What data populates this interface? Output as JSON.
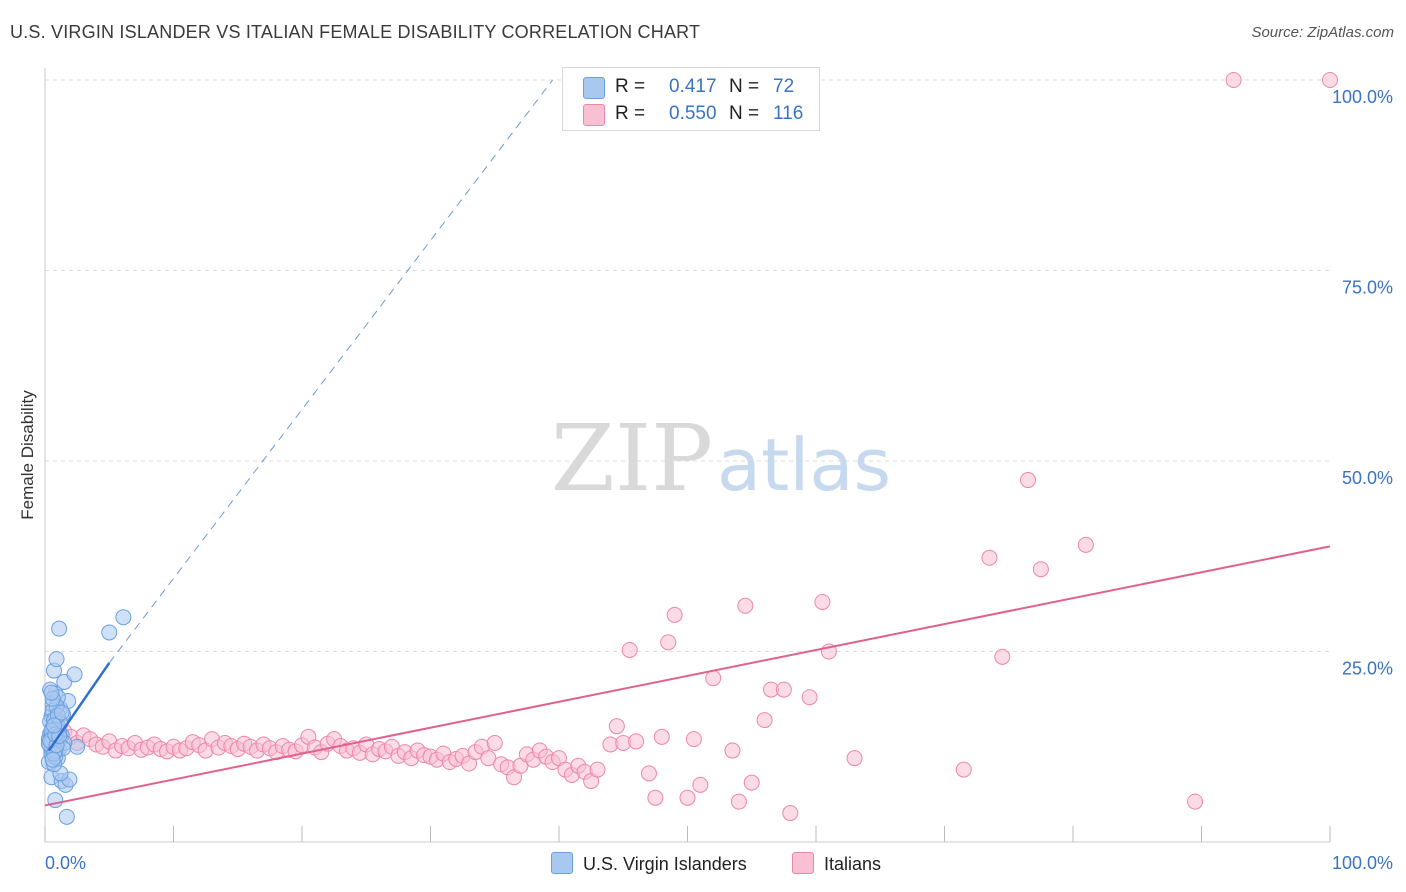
{
  "title": "U.S. VIRGIN ISLANDER VS ITALIAN FEMALE DISABILITY CORRELATION CHART",
  "source": "Source: ZipAtlas.com",
  "watermark": {
    "zip": "ZIP",
    "atlas": "atlas"
  },
  "legend": {
    "series1": {
      "r_label": "R =",
      "r_value": "0.417",
      "n_label": "N =",
      "n_value": "72"
    },
    "series2": {
      "r_label": "R =",
      "r_value": "0.550",
      "n_label": "N =",
      "n_value": "116"
    }
  },
  "bottom_legend": {
    "series1": "U.S. Virgin Islanders",
    "series2": "Italians"
  },
  "colors": {
    "blue_fill": "#a9c8f0",
    "blue_stroke": "#6a9fe0",
    "blue_line": "#2f6fcf",
    "pink_fill": "#f8c0d2",
    "pink_stroke": "#ee86a8",
    "pink_line": "#e0618e",
    "axis_text": "#3a73c4",
    "grid": "#dddddd"
  },
  "chart_data": {
    "type": "scatter",
    "title": "U.S. VIRGIN ISLANDER VS ITALIAN FEMALE DISABILITY CORRELATION CHART",
    "xlabel": "",
    "ylabel": "Female Disability",
    "xlim": [
      0,
      100
    ],
    "ylim": [
      0,
      100
    ],
    "x_tick_labels": [
      "0.0%",
      "100.0%"
    ],
    "y_tick_labels": [
      "25.0%",
      "50.0%",
      "75.0%",
      "100.0%"
    ],
    "y_ticks": [
      25,
      50,
      75,
      100
    ],
    "series": [
      {
        "name": "U.S. Virgin Islanders",
        "R": 0.417,
        "N": 72,
        "trendline": {
          "x": [
            0.3,
            5.0
          ],
          "y": [
            12.0,
            23.5
          ],
          "extension_x": [
            5.0,
            39.5
          ],
          "extension_y": [
            23.5,
            100.0
          ]
        },
        "points": [
          [
            0.3,
            13.5
          ],
          [
            0.5,
            12.0
          ],
          [
            0.6,
            15.0
          ],
          [
            0.4,
            14.2
          ],
          [
            0.7,
            13.0
          ],
          [
            0.8,
            12.5
          ],
          [
            0.5,
            16.5
          ],
          [
            0.9,
            14.8
          ],
          [
            1.0,
            13.2
          ],
          [
            0.6,
            18.0
          ],
          [
            0.8,
            19.5
          ],
          [
            1.2,
            17.5
          ],
          [
            0.4,
            20.0
          ],
          [
            1.5,
            21.0
          ],
          [
            0.7,
            22.5
          ],
          [
            0.9,
            24.0
          ],
          [
            1.1,
            28.0
          ],
          [
            2.3,
            22.0
          ],
          [
            1.8,
            18.5
          ],
          [
            2.5,
            12.5
          ],
          [
            0.6,
            11.8
          ],
          [
            0.5,
            8.5
          ],
          [
            1.3,
            8.0
          ],
          [
            1.6,
            7.5
          ],
          [
            1.9,
            8.2
          ],
          [
            0.8,
            5.5
          ],
          [
            1.7,
            3.3
          ],
          [
            1.2,
            9.0
          ],
          [
            0.3,
            10.5
          ],
          [
            0.9,
            15.5
          ],
          [
            1.4,
            16.8
          ],
          [
            0.6,
            17.2
          ],
          [
            1.0,
            11.0
          ],
          [
            0.7,
            14.5
          ],
          [
            0.5,
            13.8
          ],
          [
            1.1,
            12.2
          ],
          [
            0.4,
            15.8
          ],
          [
            0.8,
            16.2
          ],
          [
            1.3,
            14.0
          ],
          [
            0.6,
            12.8
          ],
          [
            1.0,
            19.0
          ],
          [
            0.5,
            11.5
          ],
          [
            0.7,
            10.2
          ],
          [
            1.2,
            13.6
          ],
          [
            0.9,
            17.8
          ],
          [
            0.4,
            12.6
          ],
          [
            1.5,
            13.0
          ],
          [
            0.8,
            11.2
          ],
          [
            6.1,
            29.5
          ],
          [
            5.0,
            27.5
          ],
          [
            0.6,
            14.9
          ],
          [
            1.0,
            15.2
          ],
          [
            0.5,
            13.1
          ],
          [
            0.7,
            16.0
          ],
          [
            1.1,
            14.4
          ],
          [
            0.3,
            12.9
          ],
          [
            0.9,
            13.7
          ],
          [
            1.4,
            12.3
          ],
          [
            0.6,
            18.8
          ],
          [
            0.8,
            12.0
          ],
          [
            1.2,
            15.6
          ],
          [
            0.5,
            14.6
          ],
          [
            0.7,
            11.6
          ],
          [
            1.0,
            16.6
          ],
          [
            0.4,
            13.3
          ],
          [
            0.9,
            12.7
          ],
          [
            1.3,
            17.0
          ],
          [
            0.6,
            10.8
          ],
          [
            0.8,
            14.1
          ],
          [
            1.1,
            13.9
          ],
          [
            0.5,
            19.6
          ],
          [
            0.7,
            15.3
          ]
        ]
      },
      {
        "name": "Italians",
        "R": 0.55,
        "N": 116,
        "trendline": {
          "x": [
            0,
            100
          ],
          "y": [
            4.8,
            38.8
          ]
        },
        "points": [
          [
            1.0,
            15.0
          ],
          [
            1.5,
            14.5
          ],
          [
            2.0,
            13.8
          ],
          [
            2.5,
            13.0
          ],
          [
            3.0,
            14.0
          ],
          [
            3.5,
            13.5
          ],
          [
            4.0,
            12.8
          ],
          [
            4.5,
            12.5
          ],
          [
            5.0,
            13.2
          ],
          [
            5.5,
            12.0
          ],
          [
            6.0,
            12.6
          ],
          [
            6.5,
            12.3
          ],
          [
            7.0,
            13.0
          ],
          [
            7.5,
            12.1
          ],
          [
            8.0,
            12.4
          ],
          [
            8.5,
            12.8
          ],
          [
            9.0,
            12.2
          ],
          [
            9.5,
            11.9
          ],
          [
            10.0,
            12.5
          ],
          [
            10.5,
            12.0
          ],
          [
            11.0,
            12.3
          ],
          [
            11.5,
            13.1
          ],
          [
            12.0,
            12.7
          ],
          [
            12.5,
            12.0
          ],
          [
            13.0,
            13.5
          ],
          [
            13.5,
            12.4
          ],
          [
            14.0,
            13.0
          ],
          [
            14.5,
            12.6
          ],
          [
            15.0,
            12.2
          ],
          [
            15.5,
            12.9
          ],
          [
            16.0,
            12.5
          ],
          [
            16.5,
            12.0
          ],
          [
            17.0,
            12.8
          ],
          [
            17.5,
            12.3
          ],
          [
            18.0,
            11.8
          ],
          [
            18.5,
            12.6
          ],
          [
            19.0,
            12.1
          ],
          [
            19.5,
            11.9
          ],
          [
            20.0,
            12.7
          ],
          [
            20.5,
            13.8
          ],
          [
            21.0,
            12.4
          ],
          [
            21.5,
            11.8
          ],
          [
            22.0,
            12.9
          ],
          [
            22.5,
            13.5
          ],
          [
            23.0,
            12.6
          ],
          [
            23.5,
            12.0
          ],
          [
            24.0,
            12.3
          ],
          [
            24.5,
            11.7
          ],
          [
            25.0,
            12.8
          ],
          [
            25.5,
            11.5
          ],
          [
            26.0,
            12.2
          ],
          [
            26.5,
            11.9
          ],
          [
            27.0,
            12.5
          ],
          [
            27.5,
            11.3
          ],
          [
            28.0,
            11.8
          ],
          [
            28.5,
            11.0
          ],
          [
            29.0,
            12.0
          ],
          [
            29.5,
            11.4
          ],
          [
            30.0,
            11.2
          ],
          [
            30.5,
            10.8
          ],
          [
            31.0,
            11.6
          ],
          [
            31.5,
            10.5
          ],
          [
            32.0,
            10.9
          ],
          [
            32.5,
            11.3
          ],
          [
            33.0,
            10.3
          ],
          [
            33.5,
            11.8
          ],
          [
            34.0,
            12.5
          ],
          [
            34.5,
            11.0
          ],
          [
            35.0,
            13.0
          ],
          [
            35.5,
            10.2
          ],
          [
            36.0,
            9.8
          ],
          [
            36.5,
            8.5
          ],
          [
            37.0,
            10.0
          ],
          [
            37.5,
            11.5
          ],
          [
            38.0,
            10.8
          ],
          [
            38.5,
            12.0
          ],
          [
            39.0,
            11.2
          ],
          [
            39.5,
            10.5
          ],
          [
            40.0,
            11.0
          ],
          [
            40.5,
            9.5
          ],
          [
            41.0,
            8.8
          ],
          [
            41.5,
            10.0
          ],
          [
            42.0,
            9.2
          ],
          [
            42.5,
            8.0
          ],
          [
            43.0,
            9.5
          ],
          [
            44.0,
            12.8
          ],
          [
            44.5,
            15.2
          ],
          [
            45.0,
            13.0
          ],
          [
            45.5,
            25.2
          ],
          [
            46.0,
            13.2
          ],
          [
            47.0,
            9.0
          ],
          [
            47.5,
            5.8
          ],
          [
            48.0,
            13.8
          ],
          [
            48.5,
            26.2
          ],
          [
            49.0,
            29.8
          ],
          [
            50.0,
            5.8
          ],
          [
            50.5,
            13.5
          ],
          [
            51.0,
            7.5
          ],
          [
            52.0,
            21.5
          ],
          [
            53.5,
            12.0
          ],
          [
            54.0,
            5.3
          ],
          [
            54.5,
            31.0
          ],
          [
            55.0,
            7.8
          ],
          [
            56.0,
            16.0
          ],
          [
            56.5,
            20.0
          ],
          [
            57.5,
            20.0
          ],
          [
            58.0,
            3.8
          ],
          [
            59.5,
            19.0
          ],
          [
            60.5,
            31.5
          ],
          [
            61.0,
            25.0
          ],
          [
            71.5,
            9.5
          ],
          [
            73.5,
            37.3
          ],
          [
            74.5,
            24.3
          ],
          [
            76.5,
            47.5
          ],
          [
            77.5,
            35.8
          ],
          [
            81.0,
            39.0
          ],
          [
            89.5,
            5.3
          ],
          [
            92.5,
            100.0
          ],
          [
            100.0,
            100.0
          ],
          [
            63.0,
            11.0
          ]
        ]
      }
    ]
  }
}
